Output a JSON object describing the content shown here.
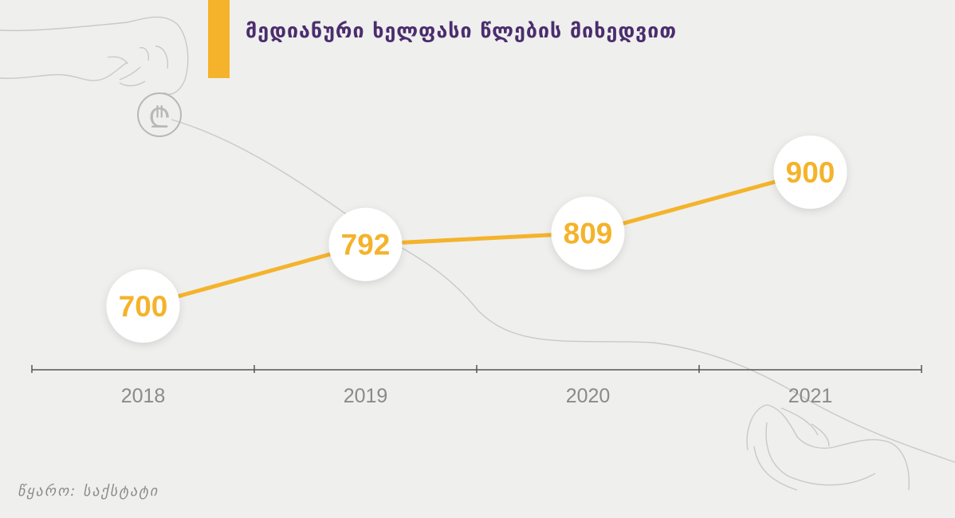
{
  "header": {
    "title": "მედიანური ხელფასი წლების მიხედვით"
  },
  "source": {
    "text": "წყარო: საქსტატი"
  },
  "colors": {
    "accent": "#f4b32b",
    "title": "#4a2d6e",
    "axis": "#555555",
    "background": "#efefed"
  },
  "decor": {
    "top": "hand-dropping-lari-coin-icon",
    "bottom": "open-hand-icon",
    "coin_symbol": "₾"
  },
  "chart_data": {
    "type": "line",
    "categories": [
      "2018",
      "2019",
      "2020",
      "2021"
    ],
    "values": [
      700,
      792,
      809,
      900
    ],
    "data_labels": [
      "700",
      "792",
      "809",
      "900"
    ],
    "title": "მედიანური ხელფასი წლების მიხედვით",
    "xlabel": "",
    "ylabel": "",
    "grid": false
  }
}
